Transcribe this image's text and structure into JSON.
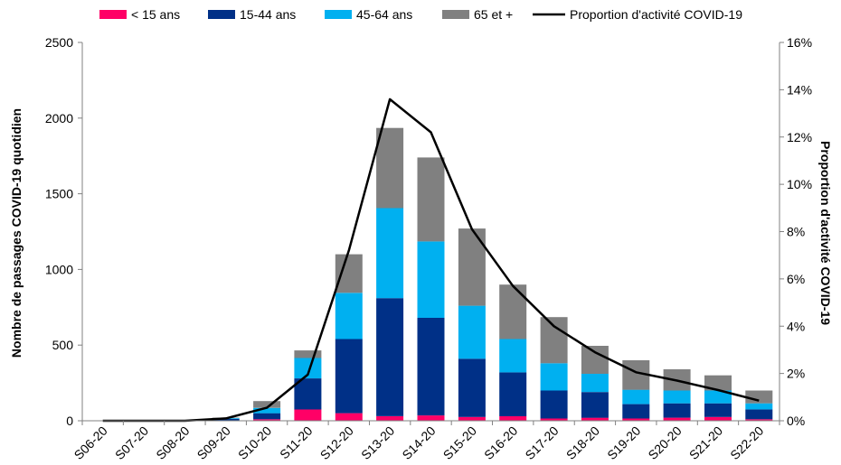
{
  "colors": {
    "lt15": "#ff0066",
    "a15_44": "#003087",
    "a45_64": "#00b0f0",
    "a65": "#808080",
    "line": "#000000"
  },
  "chart_data": {
    "type": "bar",
    "stacked": true,
    "categories": [
      "S06-20",
      "S07-20",
      "S08-20",
      "S09-20",
      "S10-20",
      "S11-20",
      "S12-20",
      "S13-20",
      "S14-20",
      "S15-20",
      "S16-20",
      "S17-20",
      "S18-20",
      "S19-20",
      "S20-20",
      "S21-20",
      "S22-20"
    ],
    "series": [
      {
        "name": "< 15 ans",
        "color_key": "lt15",
        "values": [
          0,
          0,
          0,
          2,
          10,
          75,
          50,
          30,
          35,
          25,
          30,
          15,
          20,
          15,
          20,
          25,
          10
        ]
      },
      {
        "name": "15-44 ans",
        "color_key": "a15_44",
        "values": [
          1,
          1,
          1,
          10,
          40,
          205,
          490,
          780,
          645,
          385,
          290,
          185,
          170,
          95,
          95,
          90,
          65
        ]
      },
      {
        "name": "45-64 ans",
        "color_key": "a45_64",
        "values": [
          0,
          0,
          0,
          5,
          35,
          135,
          305,
          595,
          505,
          350,
          220,
          180,
          120,
          95,
          85,
          85,
          40
        ]
      },
      {
        "name": "65 et +",
        "color_key": "a65",
        "values": [
          0,
          0,
          0,
          3,
          45,
          50,
          255,
          530,
          555,
          510,
          360,
          305,
          185,
          195,
          140,
          100,
          85
        ]
      }
    ],
    "line": {
      "name": "Proportion d'activité COVID-19",
      "color_key": "line",
      "values": [
        0.0,
        0.0,
        0.0,
        0.1,
        0.55,
        1.95,
        7.2,
        13.6,
        12.2,
        8.1,
        5.7,
        4.0,
        2.9,
        2.05,
        1.7,
        1.3,
        0.85
      ]
    },
    "ylabel": "Nombre de passages COVID-19 quotidien",
    "y2label": "Proportion d'activité COVID-19",
    "ylim": [
      0,
      2500
    ],
    "y2lim": [
      0,
      16
    ],
    "yticks": [
      "0",
      "500",
      "1000",
      "1500",
      "2000",
      "2500"
    ],
    "y2ticks": [
      "0%",
      "2%",
      "4%",
      "6%",
      "8%",
      "10%",
      "12%",
      "14%",
      "16%"
    ],
    "legend": "top",
    "grid": false
  }
}
